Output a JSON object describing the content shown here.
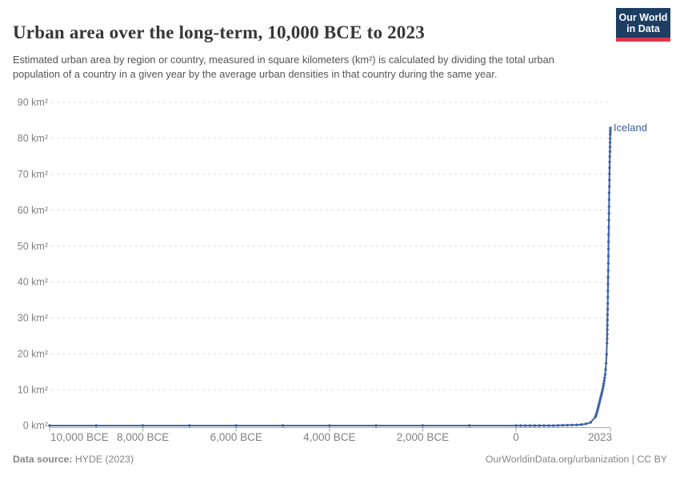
{
  "header": {
    "title": "Urban area over the long-term, 10,000 BCE to 2023",
    "subtitle": "Estimated urban area by region or country, measured in square kilometers (km²) is calculated by dividing the total urban population of a country in a given year by the average urban densities in that country during the same year.",
    "logo": {
      "line1": "Our World",
      "line2": "in Data"
    }
  },
  "footer": {
    "source_label": "Data source:",
    "source_value": " HYDE (2023)",
    "right_text": "OurWorldinData.org/urbanization | CC BY"
  },
  "chart_data": {
    "type": "line",
    "title": "Urban area over the long-term, 10,000 BCE to 2023",
    "unit": "km²",
    "xlabel": "",
    "ylabel": "",
    "xlim": [
      -10000,
      2023
    ],
    "ylim": [
      0,
      90
    ],
    "grid": "horizontal-dashed",
    "legend_position": "end-of-line-label",
    "colors": {
      "line": "#4064a4",
      "series_label": "#3d5a94",
      "grid": "#dcdcdc",
      "axis": "#a8a8a8",
      "tick_label": "#818181"
    },
    "x_ticks": [
      {
        "year": -10000,
        "label": "10,000 BCE"
      },
      {
        "year": -8000,
        "label": "8,000 BCE"
      },
      {
        "year": -6000,
        "label": "6,000 BCE"
      },
      {
        "year": -4000,
        "label": "4,000 BCE"
      },
      {
        "year": -2000,
        "label": "2,000 BCE"
      },
      {
        "year": 0,
        "label": "0"
      },
      {
        "year": 2023,
        "label": "2023"
      }
    ],
    "y_ticks": [
      {
        "value": 0,
        "label": "0 km²"
      },
      {
        "value": 10,
        "label": "10 km²"
      },
      {
        "value": 20,
        "label": "20 km²"
      },
      {
        "value": 30,
        "label": "30 km²"
      },
      {
        "value": 40,
        "label": "40 km²"
      },
      {
        "value": 50,
        "label": "50 km²"
      },
      {
        "value": 60,
        "label": "60 km²"
      },
      {
        "value": 70,
        "label": "70 km²"
      },
      {
        "value": 80,
        "label": "80 km²"
      },
      {
        "value": 90,
        "label": "90 km²"
      }
    ],
    "series": [
      {
        "name": "Iceland",
        "points": [
          [
            -10000,
            0
          ],
          [
            -9000,
            0
          ],
          [
            -8000,
            0
          ],
          [
            -7000,
            0
          ],
          [
            -6000,
            0
          ],
          [
            -5000,
            0
          ],
          [
            -4000,
            0
          ],
          [
            -3000,
            0
          ],
          [
            -2000,
            0
          ],
          [
            -1000,
            0
          ],
          [
            0,
            0
          ],
          [
            100,
            0
          ],
          [
            200,
            0
          ],
          [
            300,
            0
          ],
          [
            400,
            0
          ],
          [
            500,
            0
          ],
          [
            600,
            0
          ],
          [
            700,
            0
          ],
          [
            800,
            0
          ],
          [
            900,
            0.05
          ],
          [
            1000,
            0.1
          ],
          [
            1100,
            0.12
          ],
          [
            1200,
            0.15
          ],
          [
            1300,
            0.2
          ],
          [
            1400,
            0.3
          ],
          [
            1500,
            0.5
          ],
          [
            1600,
            0.9
          ],
          [
            1700,
            2.4
          ],
          [
            1710,
            2.7
          ],
          [
            1720,
            3.1
          ],
          [
            1730,
            3.5
          ],
          [
            1740,
            4
          ],
          [
            1750,
            4.5
          ],
          [
            1760,
            5
          ],
          [
            1770,
            5.5
          ],
          [
            1780,
            6
          ],
          [
            1790,
            6.5
          ],
          [
            1800,
            7.1
          ],
          [
            1810,
            7.6
          ],
          [
            1820,
            8.1
          ],
          [
            1830,
            8.6
          ],
          [
            1840,
            9.1
          ],
          [
            1850,
            9.7
          ],
          [
            1860,
            10.3
          ],
          [
            1870,
            11
          ],
          [
            1880,
            11.7
          ],
          [
            1890,
            12.4
          ],
          [
            1900,
            13.2
          ],
          [
            1910,
            14.2
          ],
          [
            1920,
            15.6
          ],
          [
            1930,
            17.4
          ],
          [
            1940,
            19.8
          ],
          [
            1950,
            23
          ],
          [
            1952,
            24.2
          ],
          [
            1954,
            25.4
          ],
          [
            1956,
            26.7
          ],
          [
            1958,
            28
          ],
          [
            1960,
            29.4
          ],
          [
            1962,
            30.9
          ],
          [
            1964,
            32.4
          ],
          [
            1966,
            34
          ],
          [
            1968,
            35.7
          ],
          [
            1970,
            37.5
          ],
          [
            1972,
            39.4
          ],
          [
            1974,
            41.3
          ],
          [
            1976,
            43.2
          ],
          [
            1978,
            45.2
          ],
          [
            1980,
            47.2
          ],
          [
            1982,
            49.2
          ],
          [
            1984,
            51.2
          ],
          [
            1986,
            53.2
          ],
          [
            1988,
            55.2
          ],
          [
            1990,
            57.2
          ],
          [
            1992,
            59.1
          ],
          [
            1994,
            61
          ],
          [
            1996,
            62.9
          ],
          [
            1998,
            64.8
          ],
          [
            2000,
            66.6
          ],
          [
            2002,
            68.4
          ],
          [
            2004,
            70.1
          ],
          [
            2006,
            71.8
          ],
          [
            2008,
            73.4
          ],
          [
            2010,
            74.9
          ],
          [
            2012,
            76.3
          ],
          [
            2014,
            77.6
          ],
          [
            2016,
            78.8
          ],
          [
            2018,
            79.9
          ],
          [
            2020,
            81
          ],
          [
            2021,
            81.6
          ],
          [
            2022,
            82.2
          ],
          [
            2023,
            82.9
          ]
        ]
      }
    ]
  }
}
